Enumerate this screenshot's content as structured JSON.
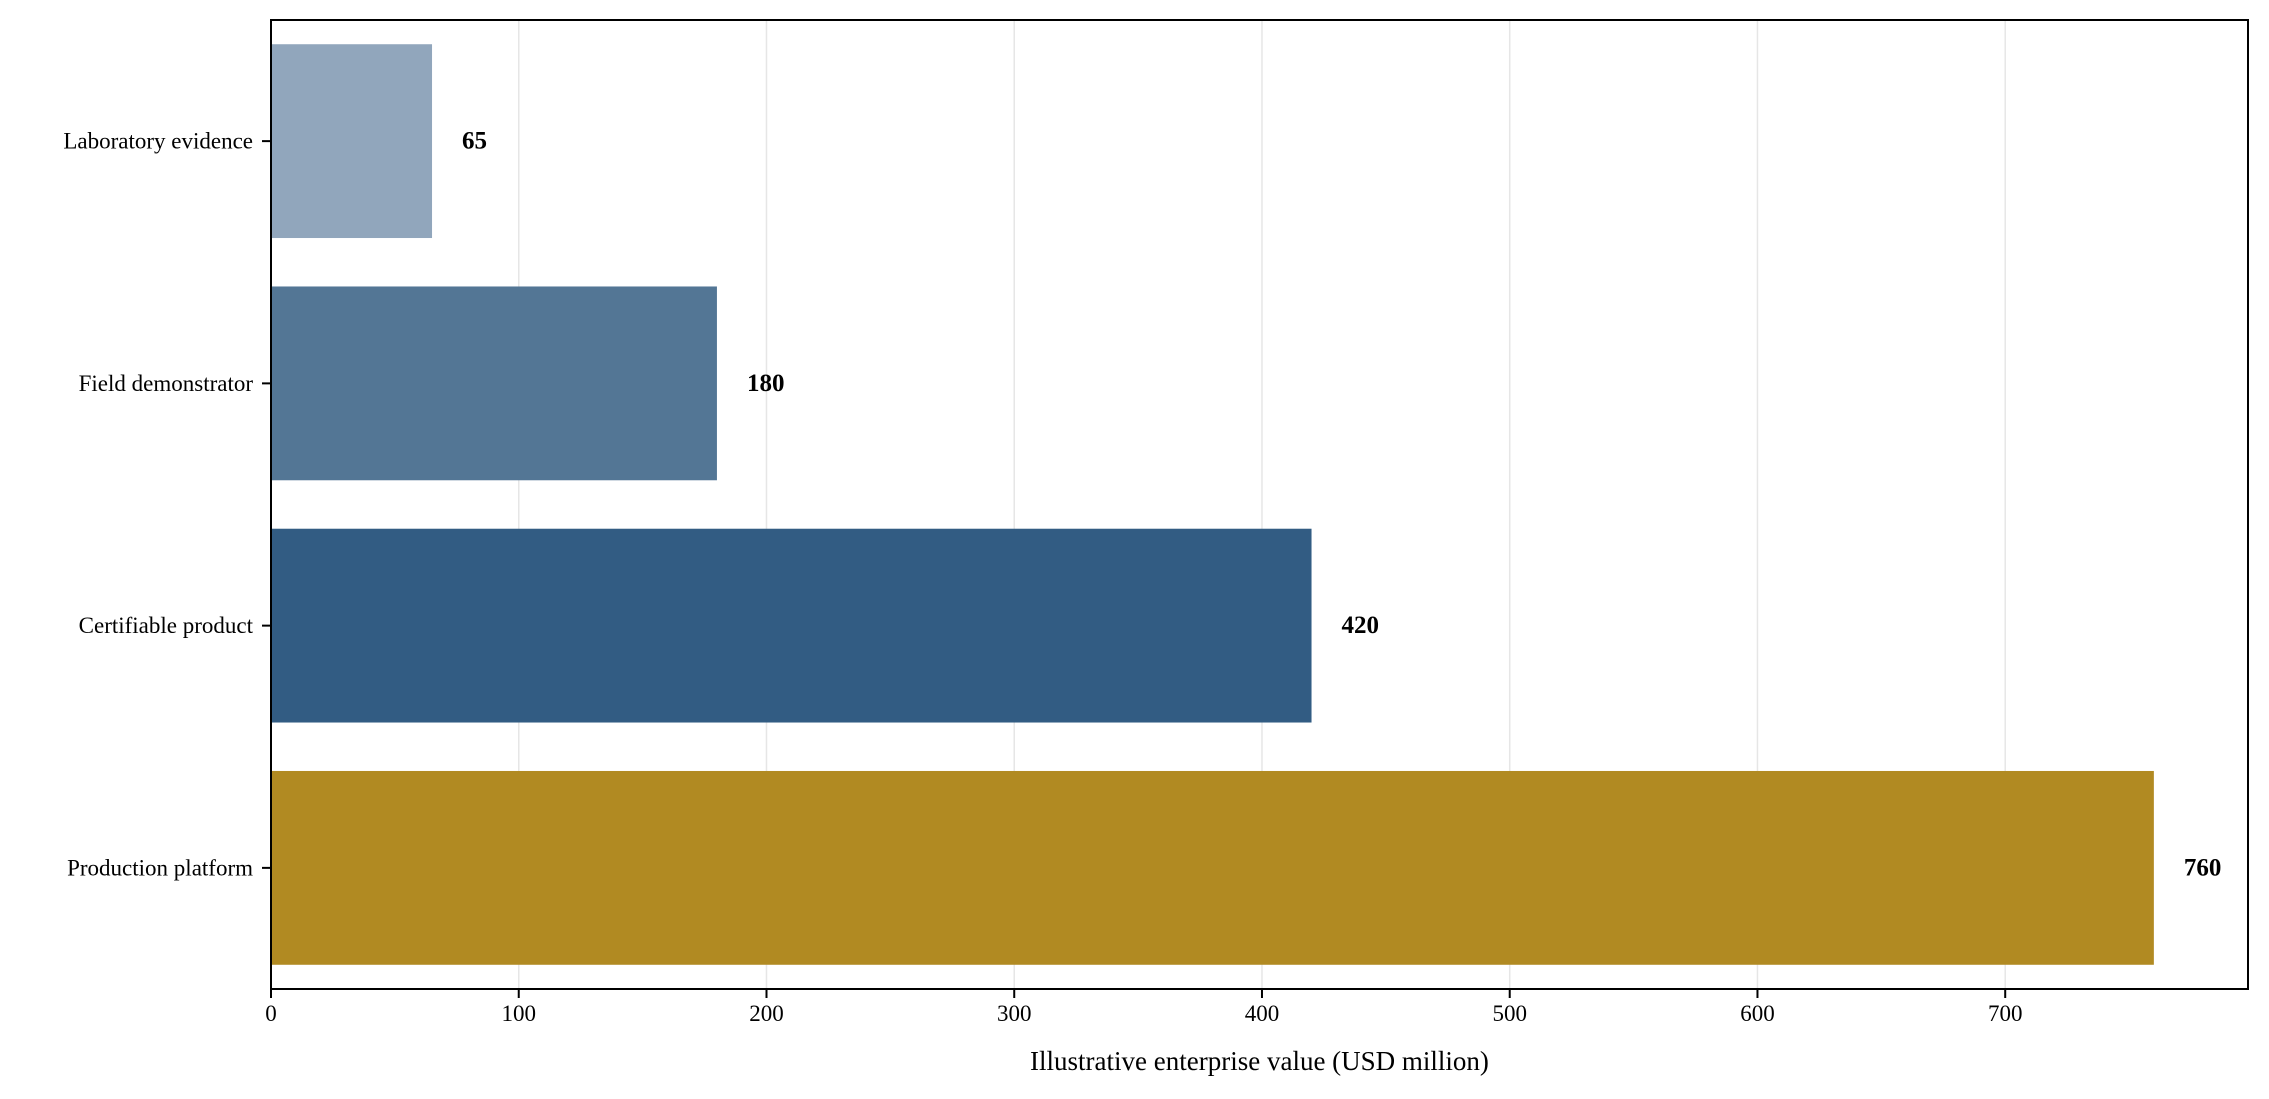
{
  "chart_data": {
    "type": "bar",
    "orientation": "horizontal",
    "title": "",
    "categories": [
      "Laboratory evidence",
      "Field demonstrator",
      "Certifiable product",
      "Production platform"
    ],
    "values": [
      65,
      180,
      420,
      760
    ],
    "value_labels": [
      "65",
      "180",
      "420",
      "760"
    ],
    "bar_colors": [
      "#91a6bc",
      "#537695",
      "#325c83",
      "#b18a22"
    ],
    "xlabel": "Illustrative enterprise value (USD million)",
    "ylabel": "",
    "xlim": [
      0,
      798
    ],
    "xticks": [
      0,
      100,
      200,
      300,
      400,
      500,
      600,
      700
    ],
    "xtick_labels": [
      "0",
      "100",
      "200",
      "300",
      "400",
      "500",
      "600",
      "700"
    ],
    "grid": "vertical",
    "legend": "none"
  }
}
